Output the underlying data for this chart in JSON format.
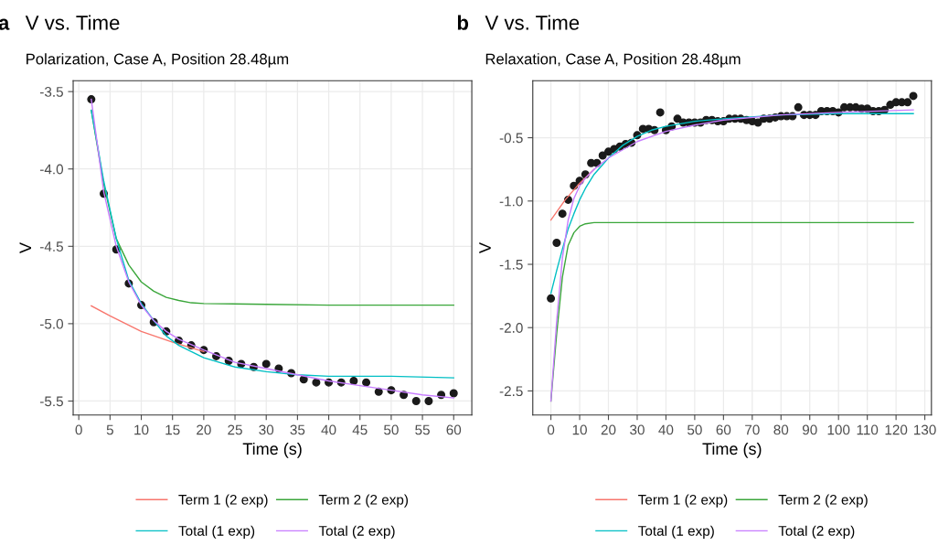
{
  "chart_data": [
    {
      "type": "line",
      "title": "V vs. Time",
      "subtitle": "Polarization, Case A, Position 28.48µm",
      "xlabel": "Time (s)",
      "ylabel": "V",
      "annotations": [
        "a"
      ],
      "xlim": [
        -0.9,
        62.9
      ],
      "xticks": [
        0,
        5,
        10,
        15,
        20,
        25,
        30,
        35,
        40,
        45,
        50,
        55,
        60
      ],
      "ylim": [
        -5.59,
        -3.43
      ],
      "yticks": [
        -3.5,
        {
          "value": -4,
          "label": "-4.0"
        },
        -4.5,
        {
          "value": -5,
          "label": "-5.0"
        },
        -5.5
      ],
      "grid": true,
      "legend": "bottom",
      "series": [
        {
          "type": "scatter",
          "marker": "circle",
          "color": "#1a1a1a",
          "x": [
            2,
            4,
            6,
            8,
            10,
            12,
            14,
            16,
            18,
            20,
            22,
            24,
            26,
            28,
            30,
            32,
            34,
            36,
            38,
            40,
            42,
            44,
            46,
            48,
            50,
            52,
            54,
            56,
            58,
            60
          ],
          "values": [
            -3.55,
            -4.16,
            -4.52,
            -4.74,
            -4.88,
            -4.99,
            -5.05,
            -5.11,
            -5.14,
            -5.17,
            -5.21,
            -5.24,
            -5.26,
            -5.28,
            -5.26,
            -5.29,
            -5.32,
            -5.36,
            -5.38,
            -5.38,
            -5.38,
            -5.37,
            -5.38,
            -5.44,
            -5.43,
            -5.46,
            -5.5,
            -5.5,
            -5.46,
            -5.45
          ]
        },
        {
          "name": "Term 1 (2 exp)",
          "color": "#F8766D",
          "x": [
            2,
            5,
            10,
            15,
            20
          ],
          "values": [
            -4.885,
            -4.95,
            -5.05,
            -5.12,
            -5.18
          ]
        },
        {
          "name": "Term 2 (2 exp)",
          "color": "#3AA63A",
          "x": [
            2,
            4,
            6,
            8,
            10,
            12,
            14,
            16,
            18,
            20,
            30,
            40,
            60
          ],
          "values": [
            -3.62,
            -4.1,
            -4.45,
            -4.62,
            -4.73,
            -4.79,
            -4.83,
            -4.85,
            -4.865,
            -4.87,
            -4.875,
            -4.88,
            -4.88
          ]
        },
        {
          "name": "Total (1 exp)",
          "color": "#00BFC4",
          "x": [
            2,
            4,
            6,
            8,
            10,
            12,
            14,
            16,
            18,
            20,
            25,
            30,
            35,
            40,
            50,
            60
          ],
          "values": [
            -3.62,
            -4.08,
            -4.45,
            -4.72,
            -4.87,
            -4.98,
            -5.08,
            -5.14,
            -5.18,
            -5.22,
            -5.28,
            -5.31,
            -5.33,
            -5.34,
            -5.34,
            -5.35
          ]
        },
        {
          "name": "Total (2 exp)",
          "color": "#C77CFF",
          "x": [
            2,
            4,
            6,
            8,
            10,
            12,
            14,
            16,
            20,
            25,
            30,
            35,
            40,
            45,
            50,
            55,
            60
          ],
          "values": [
            -3.55,
            -4.15,
            -4.5,
            -4.73,
            -4.88,
            -4.98,
            -5.05,
            -5.1,
            -5.17,
            -5.25,
            -5.29,
            -5.33,
            -5.37,
            -5.4,
            -5.43,
            -5.46,
            -5.48
          ]
        }
      ]
    },
    {
      "type": "line",
      "title": "V vs. Time",
      "subtitle": "Relaxation, Case A, Position 28.48µm",
      "xlabel": "Time (s)",
      "ylabel": "V",
      "annotations": [
        "b"
      ],
      "xlim": [
        -6.3,
        132.3
      ],
      "xticks": [
        0,
        10,
        20,
        30,
        40,
        50,
        60,
        70,
        80,
        90,
        100,
        110,
        120,
        130
      ],
      "ylim": [
        -2.69,
        -0.05
      ],
      "yticks": [
        -0.5,
        {
          "value": -1,
          "label": "-1.0"
        },
        -1.5,
        {
          "value": -2,
          "label": "-2.0"
        },
        -2.5
      ],
      "grid": true,
      "legend": "bottom",
      "series": [
        {
          "type": "scatter",
          "marker": "circle",
          "color": "#1a1a1a",
          "x": [
            0,
            2,
            4,
            6,
            8,
            10,
            12,
            14,
            16,
            18,
            20,
            22,
            24,
            26,
            28,
            30,
            32,
            34,
            36,
            38,
            40,
            42,
            44,
            46,
            48,
            50,
            52,
            54,
            56,
            58,
            60,
            62,
            64,
            66,
            68,
            70,
            72,
            74,
            76,
            78,
            80,
            82,
            84,
            86,
            88,
            90,
            92,
            94,
            96,
            98,
            100,
            102,
            104,
            106,
            108,
            110,
            112,
            114,
            116,
            118,
            120,
            122,
            124,
            126
          ],
          "values": [
            -1.77,
            -1.33,
            -1.1,
            -0.99,
            -0.88,
            -0.84,
            -0.79,
            -0.7,
            -0.7,
            -0.64,
            -0.61,
            -0.59,
            -0.57,
            -0.55,
            -0.54,
            -0.48,
            -0.43,
            -0.43,
            -0.44,
            -0.3,
            -0.44,
            -0.41,
            -0.35,
            -0.38,
            -0.38,
            -0.38,
            -0.38,
            -0.36,
            -0.36,
            -0.37,
            -0.37,
            -0.35,
            -0.35,
            -0.35,
            -0.36,
            -0.37,
            -0.38,
            -0.35,
            -0.35,
            -0.34,
            -0.33,
            -0.33,
            -0.33,
            -0.26,
            -0.32,
            -0.32,
            -0.32,
            -0.29,
            -0.29,
            -0.29,
            -0.3,
            -0.26,
            -0.26,
            -0.26,
            -0.27,
            -0.27,
            -0.29,
            -0.29,
            -0.28,
            -0.24,
            -0.22,
            -0.22,
            -0.22,
            -0.17
          ]
        },
        {
          "name": "Term 1 (2 exp)",
          "color": "#F8766D",
          "x": [
            0,
            5,
            10,
            15
          ],
          "values": [
            -1.15,
            -0.99,
            -0.86,
            -0.75
          ]
        },
        {
          "name": "Term 2 (2 exp)",
          "color": "#3AA63A",
          "x": [
            0,
            2,
            4,
            6,
            8,
            10,
            12,
            15,
            126
          ],
          "values": [
            -2.58,
            -2.05,
            -1.6,
            -1.35,
            -1.25,
            -1.2,
            -1.18,
            -1.17,
            -1.17
          ]
        },
        {
          "name": "Total (1 exp)",
          "color": "#00BFC4",
          "x": [
            0,
            2,
            4,
            6,
            8,
            10,
            12,
            15,
            20,
            25,
            30,
            35,
            40,
            50,
            60,
            80,
            100,
            126
          ],
          "values": [
            -1.73,
            -1.55,
            -1.38,
            -1.22,
            -1.1,
            -0.99,
            -0.9,
            -0.79,
            -0.66,
            -0.56,
            -0.49,
            -0.44,
            -0.41,
            -0.37,
            -0.35,
            -0.32,
            -0.31,
            -0.31
          ]
        },
        {
          "name": "Total (2 exp)",
          "color": "#C77CFF",
          "x": [
            0,
            2,
            4,
            6,
            8,
            10,
            12,
            15,
            20,
            30,
            40,
            50,
            60,
            80,
            100,
            126
          ],
          "values": [
            -2.58,
            -1.95,
            -1.45,
            -1.15,
            -0.98,
            -0.88,
            -0.82,
            -0.75,
            -0.66,
            -0.53,
            -0.45,
            -0.4,
            -0.36,
            -0.32,
            -0.3,
            -0.28
          ]
        }
      ]
    }
  ]
}
